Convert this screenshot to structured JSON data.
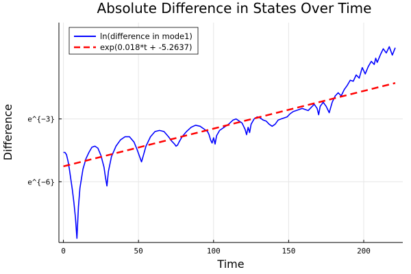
{
  "chart_data": {
    "type": "line",
    "title": "Absolute Difference in States Over Time",
    "xlabel": "Time",
    "ylabel": "Difference",
    "xlim": [
      -3,
      226
    ],
    "ylim": [
      -8.9,
      1.6
    ],
    "x_ticks": [
      0,
      50,
      100,
      150,
      200
    ],
    "y_ticks": [
      {
        "value": -3,
        "label": "e^{−3}"
      },
      {
        "value": -6,
        "label": "e^{−6}"
      }
    ],
    "grid": true,
    "legend_position": "top-left",
    "series": [
      {
        "name": "ln(difference in mode1)",
        "color": "#0000ff",
        "style": "solid",
        "points": [
          [
            0,
            -4.6
          ],
          [
            1,
            -4.6
          ],
          [
            2,
            -4.7
          ],
          [
            3,
            -5.0
          ],
          [
            4,
            -5.4
          ],
          [
            5,
            -5.9
          ],
          [
            6,
            -6.4
          ],
          [
            7,
            -7.0
          ],
          [
            8,
            -7.7
          ],
          [
            9,
            -8.7
          ],
          [
            10,
            -7.2
          ],
          [
            11,
            -6.3
          ],
          [
            13,
            -5.4
          ],
          [
            15,
            -4.9
          ],
          [
            17,
            -4.6
          ],
          [
            19,
            -4.35
          ],
          [
            21,
            -4.3
          ],
          [
            23,
            -4.4
          ],
          [
            25,
            -4.75
          ],
          [
            27,
            -5.3
          ],
          [
            28,
            -5.8
          ],
          [
            29,
            -6.2
          ],
          [
            30,
            -5.5
          ],
          [
            32,
            -4.8
          ],
          [
            35,
            -4.3
          ],
          [
            38,
            -4.0
          ],
          [
            41,
            -3.85
          ],
          [
            44,
            -3.85
          ],
          [
            47,
            -4.1
          ],
          [
            49,
            -4.45
          ],
          [
            51,
            -4.85
          ],
          [
            52,
            -5.05
          ],
          [
            53,
            -4.8
          ],
          [
            55,
            -4.3
          ],
          [
            58,
            -3.85
          ],
          [
            61,
            -3.6
          ],
          [
            64,
            -3.55
          ],
          [
            67,
            -3.6
          ],
          [
            70,
            -3.85
          ],
          [
            72,
            -4.05
          ],
          [
            74,
            -4.2
          ],
          [
            75,
            -4.3
          ],
          [
            76,
            -4.25
          ],
          [
            77,
            -4.1
          ],
          [
            79,
            -3.85
          ],
          [
            82,
            -3.6
          ],
          [
            85,
            -3.4
          ],
          [
            88,
            -3.3
          ],
          [
            91,
            -3.35
          ],
          [
            94,
            -3.5
          ],
          [
            96,
            -3.6
          ],
          [
            97,
            -3.75
          ],
          [
            98,
            -4.0
          ],
          [
            99,
            -4.15
          ],
          [
            100,
            -3.9
          ],
          [
            101,
            -4.2
          ],
          [
            102,
            -3.8
          ],
          [
            104,
            -3.55
          ],
          [
            107,
            -3.4
          ],
          [
            110,
            -3.25
          ],
          [
            113,
            -3.05
          ],
          [
            115,
            -3.0
          ],
          [
            117,
            -3.1
          ],
          [
            119,
            -3.2
          ],
          [
            121,
            -3.5
          ],
          [
            122,
            -3.75
          ],
          [
            123,
            -3.4
          ],
          [
            124,
            -3.65
          ],
          [
            125,
            -3.25
          ],
          [
            127,
            -3.0
          ],
          [
            129,
            -2.9
          ],
          [
            131,
            -2.95
          ],
          [
            133,
            -3.05
          ],
          [
            135,
            -3.1
          ],
          [
            137,
            -3.25
          ],
          [
            139,
            -3.35
          ],
          [
            141,
            -3.25
          ],
          [
            143,
            -3.05
          ],
          [
            145,
            -3.0
          ],
          [
            147,
            -2.95
          ],
          [
            149,
            -2.9
          ],
          [
            151,
            -2.75
          ],
          [
            153,
            -2.65
          ],
          [
            155,
            -2.6
          ],
          [
            157,
            -2.55
          ],
          [
            159,
            -2.5
          ],
          [
            161,
            -2.55
          ],
          [
            163,
            -2.6
          ],
          [
            165,
            -2.45
          ],
          [
            167,
            -2.3
          ],
          [
            169,
            -2.5
          ],
          [
            170,
            -2.8
          ],
          [
            171,
            -2.4
          ],
          [
            173,
            -2.2
          ],
          [
            175,
            -2.4
          ],
          [
            177,
            -2.7
          ],
          [
            179,
            -2.2
          ],
          [
            181,
            -1.9
          ],
          [
            183,
            -1.75
          ],
          [
            185,
            -1.9
          ],
          [
            187,
            -1.6
          ],
          [
            189,
            -1.4
          ],
          [
            191,
            -1.15
          ],
          [
            193,
            -1.2
          ],
          [
            195,
            -0.9
          ],
          [
            197,
            -1.05
          ],
          [
            199,
            -0.55
          ],
          [
            201,
            -0.85
          ],
          [
            203,
            -0.5
          ],
          [
            205,
            -0.25
          ],
          [
            207,
            -0.4
          ],
          [
            208,
            -0.1
          ],
          [
            209,
            -0.3
          ],
          [
            211,
            0.05
          ],
          [
            213,
            0.35
          ],
          [
            215,
            0.15
          ],
          [
            217,
            0.45
          ],
          [
            219,
            0.05
          ],
          [
            221,
            0.4
          ]
        ]
      },
      {
        "name": "exp(0.018*t + -5.2637)",
        "color": "#ff0000",
        "style": "dashed",
        "points": [
          [
            0,
            -5.2637
          ],
          [
            221,
            -1.2857
          ]
        ]
      }
    ]
  }
}
